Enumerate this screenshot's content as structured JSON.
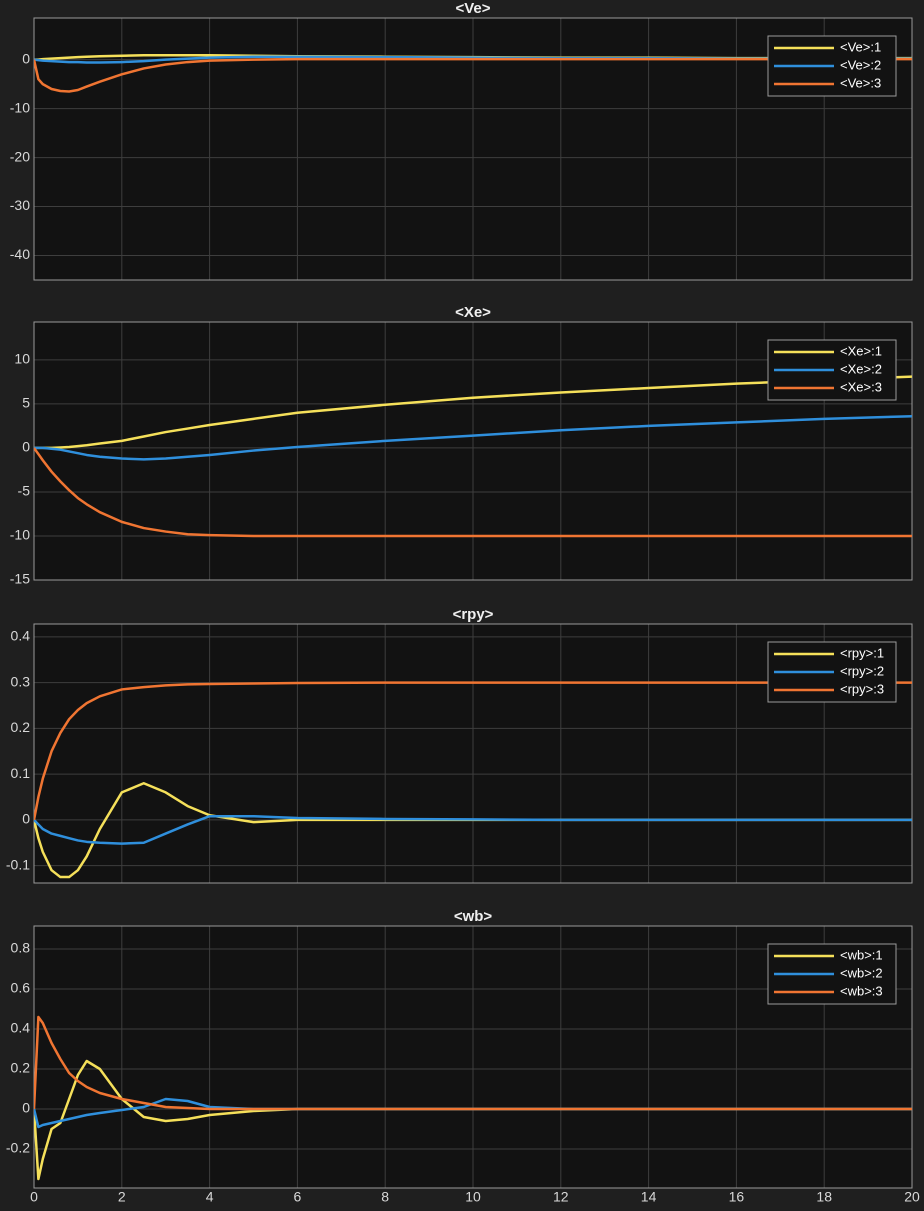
{
  "chart_data": [
    {
      "type": "line",
      "title": "<Ve>",
      "legend": "upper right",
      "grid": true,
      "x": [
        0,
        0.1,
        0.2,
        0.4,
        0.6,
        0.8,
        1,
        1.2,
        1.5,
        2,
        2.5,
        3,
        3.5,
        4,
        5,
        6,
        8,
        10,
        12,
        14,
        16,
        18,
        20
      ],
      "xlim": [
        0,
        20
      ],
      "ylim": [
        -45,
        8.5
      ],
      "yticks": [
        -40,
        -30,
        -20,
        -10,
        0
      ],
      "series": [
        {
          "name": "<Ve>:1",
          "color": "#f5e05a",
          "values": [
            0,
            0,
            0.1,
            0.2,
            0.3,
            0.4,
            0.5,
            0.6,
            0.7,
            0.8,
            0.9,
            0.9,
            0.9,
            0.9,
            0.8,
            0.7,
            0.6,
            0.5,
            0.4,
            0.4,
            0.3,
            0.3,
            0.3
          ]
        },
        {
          "name": "<Ve>:2",
          "color": "#2f8fdc",
          "values": [
            0,
            -0.1,
            -0.2,
            -0.3,
            -0.4,
            -0.5,
            -0.5,
            -0.6,
            -0.6,
            -0.5,
            -0.3,
            0,
            0.2,
            0.4,
            0.6,
            0.6,
            0.5,
            0.4,
            0.3,
            0.3,
            0.2,
            0.2,
            0.2
          ]
        },
        {
          "name": "<Ve>:3",
          "color": "#f07532",
          "values": [
            0,
            -4,
            -5,
            -6,
            -6.4,
            -6.5,
            -6.2,
            -5.5,
            -4.5,
            -3,
            -1.8,
            -1,
            -0.5,
            -0.2,
            0,
            0.1,
            0.1,
            0.1,
            0.1,
            0.1,
            0.1,
            0.1,
            0.1
          ]
        }
      ]
    },
    {
      "type": "line",
      "title": "<Xe>",
      "legend": "upper right",
      "grid": true,
      "x": [
        0,
        0.1,
        0.2,
        0.4,
        0.6,
        0.8,
        1,
        1.2,
        1.5,
        2,
        2.5,
        3,
        3.5,
        4,
        5,
        6,
        8,
        10,
        12,
        14,
        16,
        18,
        20
      ],
      "xlim": [
        0,
        20
      ],
      "ylim": [
        -15,
        14.3
      ],
      "yticks": [
        -15,
        -10,
        -5,
        0,
        5,
        10
      ],
      "series": [
        {
          "name": "<Xe>:1",
          "color": "#f5e05a",
          "values": [
            0,
            0,
            0,
            0,
            0.05,
            0.1,
            0.2,
            0.3,
            0.5,
            0.8,
            1.3,
            1.8,
            2.2,
            2.6,
            3.3,
            4,
            4.9,
            5.7,
            6.3,
            6.8,
            7.3,
            7.7,
            8.1
          ]
        },
        {
          "name": "<Xe>:2",
          "color": "#2f8fdc",
          "values": [
            0,
            0,
            0,
            -0.1,
            -0.2,
            -0.4,
            -0.6,
            -0.8,
            -1,
            -1.2,
            -1.3,
            -1.2,
            -1,
            -0.8,
            -0.3,
            0.1,
            0.8,
            1.4,
            2,
            2.5,
            2.9,
            3.3,
            3.6
          ]
        },
        {
          "name": "<Xe>:3",
          "color": "#f07532",
          "values": [
            0,
            -0.7,
            -1.4,
            -2.7,
            -3.8,
            -4.8,
            -5.7,
            -6.4,
            -7.3,
            -8.4,
            -9.1,
            -9.5,
            -9.8,
            -9.9,
            -10,
            -10,
            -10,
            -10,
            -10,
            -10,
            -10,
            -10,
            -10
          ]
        }
      ]
    },
    {
      "type": "line",
      "title": "<rpy>",
      "legend": "upper right",
      "grid": true,
      "x": [
        0,
        0.1,
        0.2,
        0.4,
        0.6,
        0.8,
        1,
        1.2,
        1.5,
        2,
        2.5,
        3,
        3.5,
        4,
        5,
        6,
        8,
        10,
        12,
        14,
        16,
        18,
        20
      ],
      "xlim": [
        0,
        20
      ],
      "ylim": [
        -0.138,
        0.428
      ],
      "yticks": [
        -0.1,
        0,
        0.1,
        0.2,
        0.3,
        0.4
      ],
      "series": [
        {
          "name": "<rpy>:1",
          "color": "#f5e05a",
          "values": [
            0,
            -0.04,
            -0.07,
            -0.11,
            -0.125,
            -0.125,
            -0.11,
            -0.08,
            -0.02,
            0.06,
            0.08,
            0.06,
            0.03,
            0.01,
            -0.005,
            0,
            0,
            0,
            0,
            0,
            0,
            0,
            0
          ]
        },
        {
          "name": "<rpy>:2",
          "color": "#2f8fdc",
          "values": [
            0,
            -0.01,
            -0.02,
            -0.03,
            -0.035,
            -0.04,
            -0.045,
            -0.048,
            -0.05,
            -0.052,
            -0.05,
            -0.03,
            -0.01,
            0.008,
            0.008,
            0.004,
            0.002,
            0.001,
            0,
            0,
            0,
            0,
            0
          ]
        },
        {
          "name": "<rpy>:3",
          "color": "#f07532",
          "values": [
            0,
            0.05,
            0.09,
            0.15,
            0.19,
            0.22,
            0.24,
            0.255,
            0.27,
            0.285,
            0.29,
            0.294,
            0.296,
            0.297,
            0.298,
            0.299,
            0.3,
            0.3,
            0.3,
            0.3,
            0.3,
            0.3,
            0.3
          ]
        }
      ]
    },
    {
      "type": "line",
      "title": "<wb>",
      "legend": "upper right",
      "grid": true,
      "x": [
        0,
        0.1,
        0.2,
        0.4,
        0.6,
        0.8,
        1,
        1.2,
        1.5,
        2,
        2.5,
        3,
        3.5,
        4,
        5,
        6,
        8,
        10,
        12,
        14,
        16,
        18,
        20
      ],
      "xlim": [
        0,
        20
      ],
      "xticks": [
        0,
        2,
        4,
        6,
        8,
        10,
        12,
        14,
        16,
        18,
        20
      ],
      "ylim": [
        -0.395,
        0.915
      ],
      "yticks": [
        -0.2,
        0,
        0.2,
        0.4,
        0.6,
        0.8
      ],
      "series": [
        {
          "name": "<wb>:1",
          "color": "#f5e05a",
          "values": [
            0,
            -0.35,
            -0.25,
            -0.1,
            -0.07,
            0.05,
            0.17,
            0.24,
            0.2,
            0.05,
            -0.04,
            -0.06,
            -0.05,
            -0.03,
            -0.01,
            0,
            0,
            0,
            0,
            0,
            0,
            0,
            0
          ]
        },
        {
          "name": "<wb>:2",
          "color": "#2f8fdc",
          "values": [
            0,
            -0.09,
            -0.08,
            -0.07,
            -0.06,
            -0.05,
            -0.04,
            -0.03,
            -0.02,
            -0.005,
            0.01,
            0.05,
            0.04,
            0.01,
            0,
            0,
            0,
            0,
            0,
            0,
            0,
            0,
            0
          ]
        },
        {
          "name": "<wb>:3",
          "color": "#f07532",
          "values": [
            0,
            0.46,
            0.43,
            0.33,
            0.25,
            0.18,
            0.14,
            0.11,
            0.08,
            0.05,
            0.03,
            0.01,
            0.005,
            0,
            0,
            0,
            0,
            0,
            0,
            0,
            0,
            0,
            0
          ]
        }
      ]
    }
  ]
}
